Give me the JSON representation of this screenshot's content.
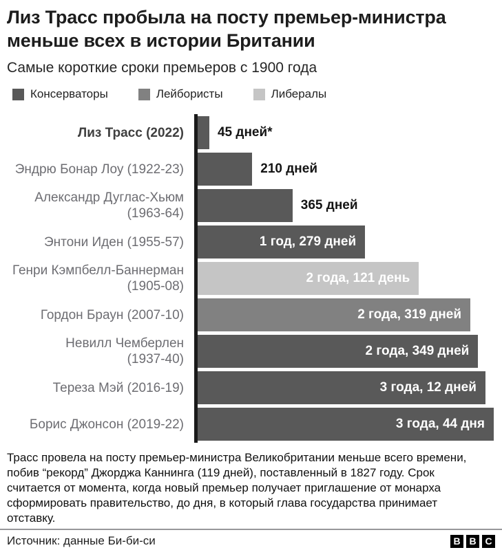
{
  "header": {
    "title": "Лиз Трасс пробыла на посту премьер-министра меньше всех в истории Британии",
    "subtitle": "Самые короткие сроки премьеров с 1900 года"
  },
  "legend": {
    "items": [
      {
        "label": "Консерваторы",
        "party": "con"
      },
      {
        "label": "Лейбористы",
        "party": "lab"
      },
      {
        "label": "Либералы",
        "party": "lib"
      }
    ]
  },
  "chart_data": {
    "type": "bar",
    "orientation": "horizontal",
    "title": "Лиз Трасс пробыла на посту премьер-министра меньше всех в истории Британии",
    "subtitle": "Самые короткие сроки премьеров с 1900 года",
    "unit": "дни",
    "max_days": 1139,
    "axis_color": "#1a1a1a",
    "party_colors": {
      "con": "#595959",
      "lab": "#818181",
      "lib": "#c5c5c5"
    },
    "legend_entries": [
      "Консерваторы",
      "Лейбористы",
      "Либералы"
    ],
    "categories": [
      "Лиз Трасс (2022)",
      "Эндрю Бонар Лоу (1922-23)",
      "Александр Дуглас-Хьюм (1963-64)",
      "Энтони Иден (1955-57)",
      "Генри Кэмпбелл-Баннерман (1905-08)",
      "Гордон Браун (2007-10)",
      "Невилл Чемберлен (1937-40)",
      "Тереза Мэй (2016-19)",
      "Борис Джонсон (2019-22)"
    ],
    "values_days": [
      45,
      210,
      365,
      644,
      851,
      1049,
      1079,
      1107,
      1139
    ],
    "rows": [
      {
        "name_line1": "Лиз Трасс (2022)",
        "name_line2": "",
        "party": "con",
        "days": 45,
        "value_label": "45 дней*",
        "label_inside": false
      },
      {
        "name_line1": "Эндрю Бонар Лоу (1922-23)",
        "name_line2": "",
        "party": "con",
        "days": 210,
        "value_label": "210 дней",
        "label_inside": false
      },
      {
        "name_line1": "Александр Дуглас-Хьюм",
        "name_line2": "(1963-64)",
        "party": "con",
        "days": 365,
        "value_label": "365 дней",
        "label_inside": false
      },
      {
        "name_line1": "Энтони Иден (1955-57)",
        "name_line2": "",
        "party": "con",
        "days": 644,
        "value_label": "1 год, 279 дней",
        "label_inside": true
      },
      {
        "name_line1": "Генри Кэмпбелл-Баннерман",
        "name_line2": "(1905-08)",
        "party": "lib",
        "days": 851,
        "value_label": "2 года, 121 день",
        "label_inside": true
      },
      {
        "name_line1": "Гордон Браун (2007-10)",
        "name_line2": "",
        "party": "lab",
        "days": 1049,
        "value_label": "2 года, 319 дней",
        "label_inside": true
      },
      {
        "name_line1": "Невилл Чемберлен",
        "name_line2": "(1937-40)",
        "party": "con",
        "days": 1079,
        "value_label": "2 года, 349 дней",
        "label_inside": true
      },
      {
        "name_line1": "Тереза Мэй (2016-19)",
        "name_line2": "",
        "party": "con",
        "days": 1107,
        "value_label": "3 года, 12 дней",
        "label_inside": true
      },
      {
        "name_line1": "Борис Джонсон (2019-22)",
        "name_line2": "",
        "party": "con",
        "days": 1139,
        "value_label": "3 года, 44 дня",
        "label_inside": true
      }
    ]
  },
  "footnote": "Трасс провела на посту премьер-министра Великобритании меньше всего времени, побив “рекорд” Джорджа Каннинга (119 дней), поставленный в 1827 году. Срок считается от момента, когда новый премьер получает приглашение от монарха сформировать правительство, до дня, в который глава государства принимает отставку.",
  "source": {
    "label": "Источник: данные Би-би-си"
  },
  "logo": {
    "letters": [
      "B",
      "B",
      "C"
    ]
  }
}
